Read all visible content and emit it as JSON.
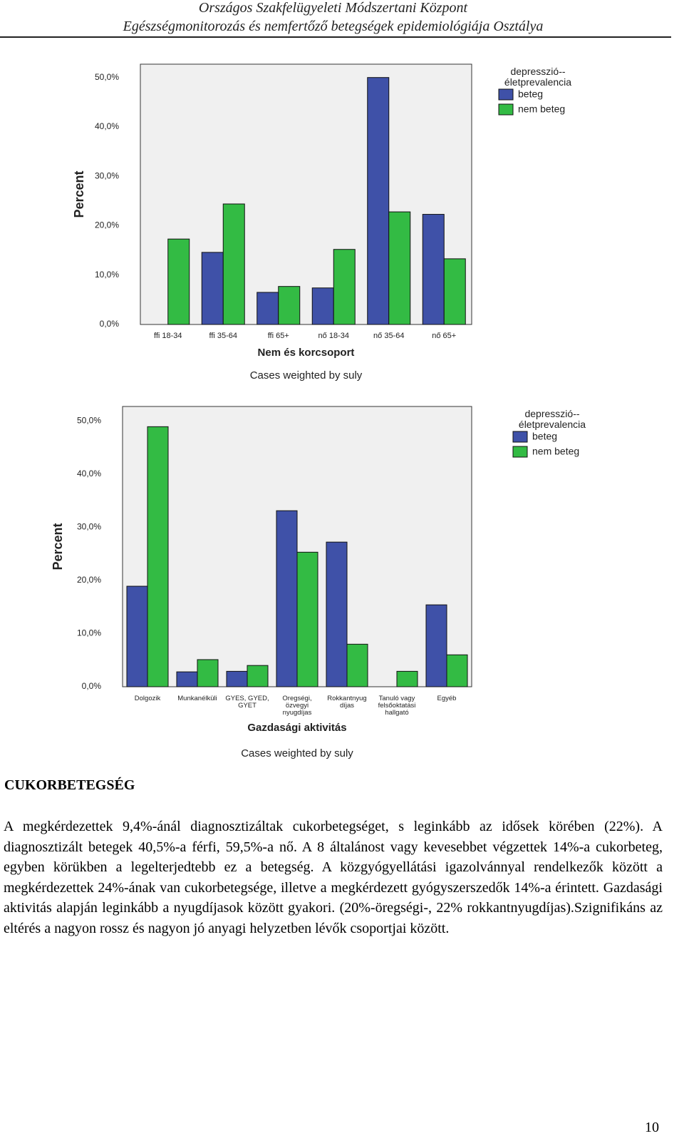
{
  "header": {
    "line1": "Országos Szakfelügyeleti Módszertani Központ",
    "line2": "Egészségmonitorozás és nemfertőző betegségek epidemiológiája Osztálya"
  },
  "chart_data": [
    {
      "type": "bar",
      "x_label": "Nem és korcsoport",
      "y_label": "Percent",
      "note": "Cases weighted by suly",
      "legend_title": "depresszió--életprevalencia",
      "categories": [
        "ffi 18-34",
        "ffi 35-64",
        "ffi 65+",
        "nő 18-34",
        "nő 35-64",
        "nő 65+"
      ],
      "series": [
        {
          "name": "beteg",
          "color": "#3f51a8",
          "values": [
            0,
            14.6,
            6.5,
            7.4,
            50.0,
            22.3
          ]
        },
        {
          "name": "nem beteg",
          "color": "#33bb44",
          "values": [
            17.3,
            24.4,
            7.7,
            15.2,
            22.8,
            13.3
          ]
        }
      ],
      "ylim": [
        0,
        52.7
      ],
      "yticks": [
        {
          "value": 0,
          "label": "0,0%"
        },
        {
          "value": 10,
          "label": "10,0%"
        },
        {
          "value": 20,
          "label": "20,0%"
        },
        {
          "value": 30,
          "label": "30,0%"
        },
        {
          "value": 40,
          "label": "40,0%"
        },
        {
          "value": 50,
          "label": "50,0%"
        }
      ]
    },
    {
      "type": "bar",
      "x_label": "Gazdasági aktivitás",
      "y_label": "Percent",
      "note": "Cases weighted by suly",
      "legend_title": "depresszió--életprevalencia",
      "categories": [
        "Dolgozik",
        "Munkanélküli",
        "GYES, GYED, GYET",
        "Öregségi, özvegyi nyugdíjas",
        "Rokkantnyug díjas",
        "Tanuló vagy felsőoktatási hallgató",
        "Egyéb"
      ],
      "series": [
        {
          "name": "beteg",
          "color": "#3f51a8",
          "values": [
            18.9,
            2.8,
            2.9,
            33.1,
            27.2,
            0,
            15.4
          ]
        },
        {
          "name": "nem beteg",
          "color": "#33bb44",
          "values": [
            48.9,
            5.1,
            4.0,
            25.3,
            8.0,
            2.9,
            6.0
          ]
        }
      ],
      "ylim": [
        0,
        52.7
      ],
      "yticks": [
        {
          "value": 0,
          "label": "0,0%"
        },
        {
          "value": 10,
          "label": "10,0%"
        },
        {
          "value": 20,
          "label": "20,0%"
        },
        {
          "value": 30,
          "label": "30,0%"
        },
        {
          "value": 40,
          "label": "40,0%"
        },
        {
          "value": 50,
          "label": "50,0%"
        }
      ]
    }
  ],
  "section_title": "CUKORBETEGSÉG",
  "paragraph": "A megkérdezettek 9,4%-ánál diagnosztizáltak cukorbetegséget, s leginkább az idősek körében (22%). A diagnosztizált betegek 40,5%-a férfi, 59,5%-a nő. A 8 általánost vagy kevesebbet végzettek 14%-a cukorbeteg, egyben körükben a legelterjedtebb ez a betegség. A közgyógyellátási igazolvánnyal rendelkezők között a megkérdezettek 24%-ának van cukorbetegsége, illetve a megkérdezett gyógyszerszedők 14%-a érintett. Gazdasági aktivitás alapján leginkább a nyugdíjasok között gyakori. (20%-öregségi-, 22% rokkantnyugdíjas).Szignifikáns az eltérés a nagyon rossz és nagyon jó anyagi helyzetben lévők csoportjai között.",
  "page_number": "10"
}
